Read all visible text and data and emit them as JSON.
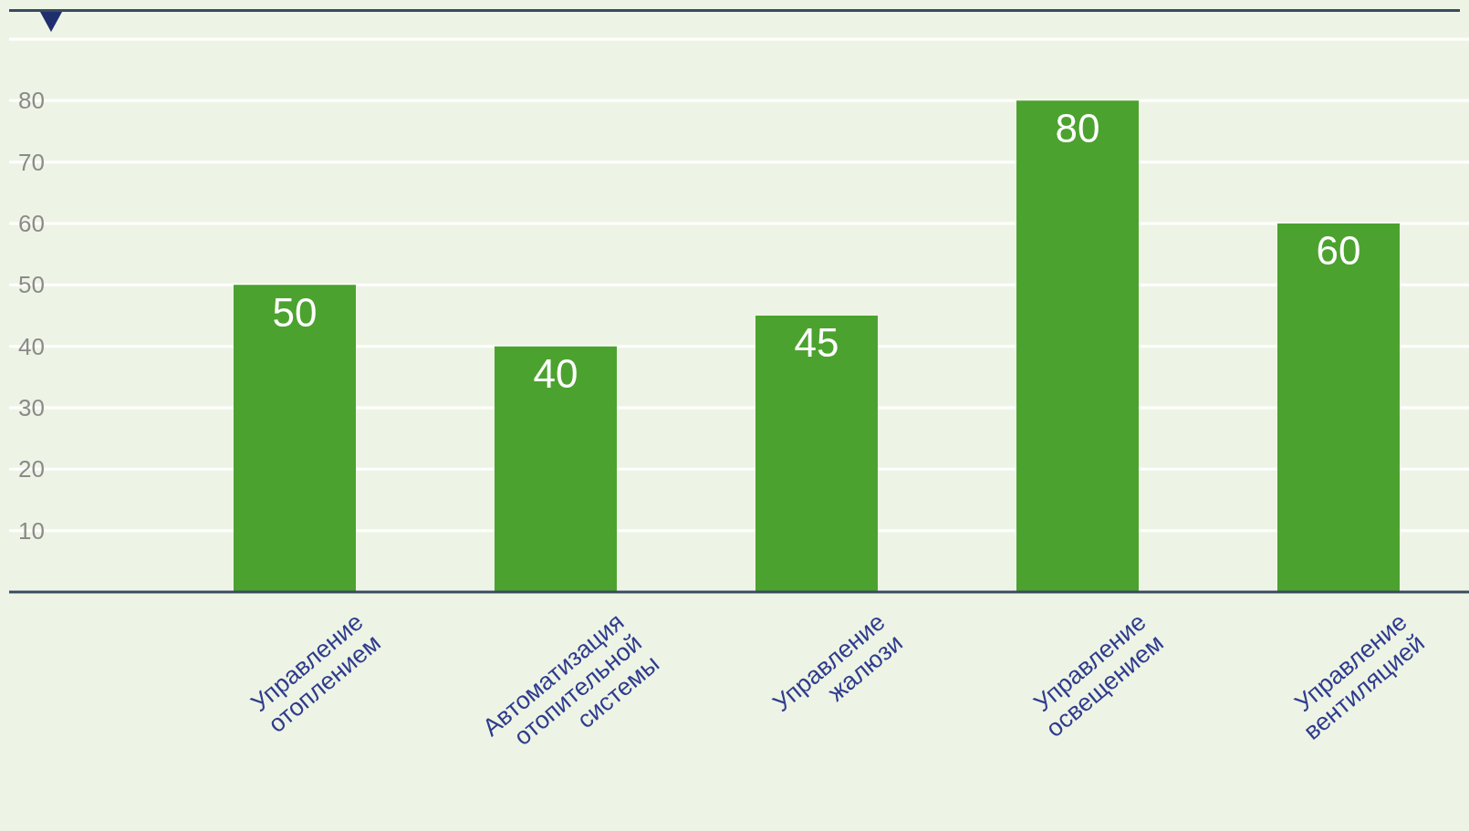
{
  "chart_data": {
    "type": "bar",
    "categories": [
      "Управление отоплением",
      "Автоматизация отопительной системы",
      "Управление жалюзи",
      "Управление освещением",
      "Управление вентиляцией"
    ],
    "values": [
      50,
      40,
      45,
      80,
      60
    ],
    "color": "#4ca22f",
    "ylim": [
      0,
      90
    ],
    "yticks": [
      10,
      20,
      30,
      40,
      50,
      60,
      70,
      80
    ],
    "grid": "y",
    "data_labels": true
  }
}
